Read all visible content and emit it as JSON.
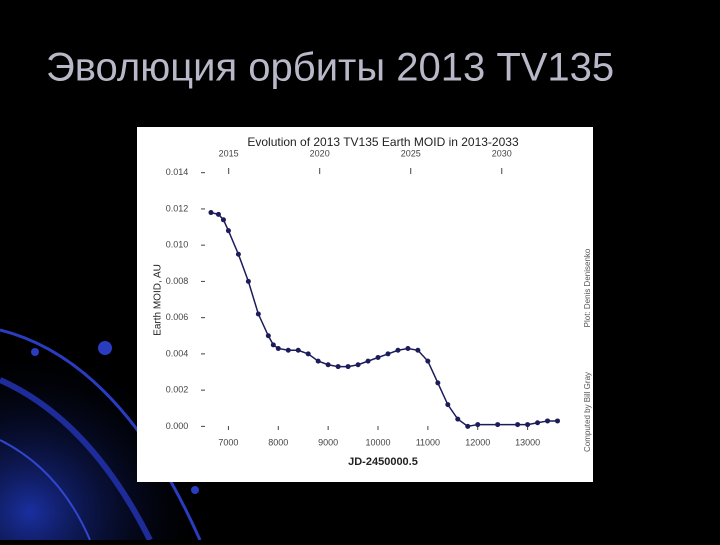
{
  "slide_title": "Эволюция орбиты 2013 TV135",
  "chart_data": {
    "type": "scatter",
    "title": "Evolution of 2013 TV135 Earth MOID in 2013-2033",
    "x_label": "JD-2450000.5",
    "y_label": "Earth MOID, AU",
    "credits": [
      "Computed by Bill Gray",
      "Plot: Denis Denisenko"
    ],
    "color": "#1c1c5a",
    "x": [
      6650,
      6800,
      6900,
      7000,
      7200,
      7400,
      7600,
      7800,
      7900,
      8000,
      8200,
      8400,
      8600,
      8800,
      9000,
      9200,
      9400,
      9600,
      9800,
      10000,
      10200,
      10400,
      10600,
      10800,
      11000,
      11200,
      11400,
      11600,
      11800,
      12000,
      12400,
      12800,
      13000,
      13200,
      13400,
      13600
    ],
    "values": [
      0.0118,
      0.0117,
      0.0114,
      0.0108,
      0.0095,
      0.008,
      0.0062,
      0.005,
      0.0045,
      0.0043,
      0.0042,
      0.0042,
      0.004,
      0.0036,
      0.0034,
      0.0033,
      0.0033,
      0.0034,
      0.0036,
      0.0038,
      0.004,
      0.0042,
      0.0043,
      0.0042,
      0.0036,
      0.0024,
      0.0012,
      0.0004,
      0,
      0.0001,
      0.0001,
      0.0001,
      0.0001,
      0.0002,
      0.0003,
      0.0003
    ],
    "xlim": [
      6530,
      13650
    ],
    "xticks": [
      7000,
      8000,
      9000,
      10000,
      11000,
      12000,
      13000
    ],
    "x2lim": [
      2013.7,
      2033.2
    ],
    "x2ticks": [
      2015,
      2020,
      2025,
      2030
    ],
    "ylim": [
      -0.0002,
      0.0147
    ],
    "yticks": [
      {
        "value": 0,
        "label": "0.000"
      },
      {
        "value": 0.002,
        "label": "0.002"
      },
      {
        "value": 0.004,
        "label": "0.004"
      },
      {
        "value": 0.006,
        "label": "0.006"
      },
      {
        "value": 0.008,
        "label": "0.008"
      },
      {
        "value": 0.01,
        "label": "0.010"
      },
      {
        "value": 0.012,
        "label": "0.012"
      },
      {
        "value": 0.014,
        "label": "0.014"
      }
    ]
  }
}
